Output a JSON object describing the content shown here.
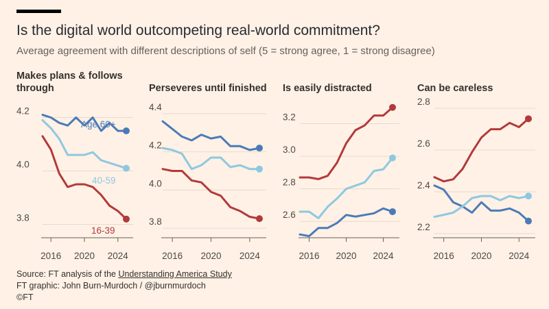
{
  "header": {
    "title": "Is the digital world outcompeting real-world commitment?",
    "subtitle": "Average agreement with different descriptions of self (5 = strong agree, 1 = strong disagree)"
  },
  "colors": {
    "age_60_plus": "#4a7bb7",
    "age_40_59": "#8ec8e0",
    "age_16_39": "#b23a3a",
    "background": "#fff1e5"
  },
  "chart_data": [
    {
      "type": "line",
      "title_lines": [
        "Makes plans & follows",
        "through"
      ],
      "x": [
        2015,
        2016,
        2017,
        2018,
        2019,
        2020,
        2021,
        2022,
        2023,
        2024,
        2025
      ],
      "xticks": [
        2016,
        2020,
        2024
      ],
      "ylim": [
        3.75,
        4.25
      ],
      "yticks": [
        3.8,
        4.0,
        4.2
      ],
      "ytick_labels": [
        "3.8",
        "4.0",
        "4.2"
      ],
      "series": [
        {
          "name": "Age 60+",
          "key": "age_60_plus",
          "values": [
            4.21,
            4.2,
            4.18,
            4.17,
            4.2,
            4.17,
            4.2,
            4.15,
            4.18,
            4.15,
            4.15
          ],
          "label": "Age 60+"
        },
        {
          "name": "40-59",
          "key": "age_40_59",
          "values": [
            4.19,
            4.16,
            4.12,
            4.06,
            4.06,
            4.06,
            4.07,
            4.04,
            4.03,
            4.02,
            4.01
          ],
          "label": "40-59"
        },
        {
          "name": "16-39",
          "key": "age_16_39",
          "values": [
            4.13,
            4.08,
            3.99,
            3.94,
            3.95,
            3.95,
            3.94,
            3.91,
            3.87,
            3.85,
            3.82
          ],
          "label": "16-39"
        }
      ]
    },
    {
      "type": "line",
      "title_lines": [
        "Perseveres until finished"
      ],
      "x": [
        2015,
        2016,
        2017,
        2018,
        2019,
        2020,
        2021,
        2022,
        2023,
        2024,
        2025
      ],
      "xticks": [
        2016,
        2020,
        2024
      ],
      "ylim": [
        3.75,
        4.45
      ],
      "yticks": [
        3.8,
        4.0,
        4.2,
        4.4
      ],
      "ytick_labels": [
        "3.8",
        "4.0",
        "4.2",
        "4.4"
      ],
      "series": [
        {
          "name": "Age 60+",
          "key": "age_60_plus",
          "values": [
            4.36,
            4.32,
            4.28,
            4.26,
            4.29,
            4.27,
            4.28,
            4.23,
            4.23,
            4.21,
            4.22
          ]
        },
        {
          "name": "40-59",
          "key": "age_40_59",
          "values": [
            4.22,
            4.21,
            4.19,
            4.11,
            4.13,
            4.17,
            4.17,
            4.12,
            4.13,
            4.11,
            4.11
          ]
        },
        {
          "name": "16-39",
          "key": "age_16_39",
          "values": [
            4.11,
            4.1,
            4.1,
            4.05,
            4.04,
            3.99,
            3.97,
            3.91,
            3.89,
            3.86,
            3.85
          ]
        }
      ]
    },
    {
      "type": "line",
      "title_lines": [
        "Is easily distracted"
      ],
      "x": [
        2015,
        2016,
        2017,
        2018,
        2019,
        2020,
        2021,
        2022,
        2023,
        2024,
        2025
      ],
      "xticks": [
        2016,
        2020,
        2024
      ],
      "ylim": [
        2.5,
        3.32
      ],
      "yticks": [
        2.6,
        2.8,
        3.0,
        3.2
      ],
      "ytick_labels": [
        "2.6",
        "2.8",
        "3.0",
        "3.2"
      ],
      "series": [
        {
          "name": "Age 60+",
          "key": "age_60_plus",
          "values": [
            2.52,
            2.51,
            2.56,
            2.56,
            2.59,
            2.64,
            2.63,
            2.64,
            2.65,
            2.68,
            2.66
          ]
        },
        {
          "name": "40-59",
          "key": "age_40_59",
          "values": [
            2.66,
            2.66,
            2.62,
            2.69,
            2.74,
            2.8,
            2.82,
            2.84,
            2.91,
            2.92,
            2.99
          ]
        },
        {
          "name": "16-39",
          "key": "age_16_39",
          "values": [
            2.87,
            2.87,
            2.86,
            2.88,
            2.96,
            3.08,
            3.16,
            3.19,
            3.25,
            3.25,
            3.3
          ]
        }
      ]
    },
    {
      "type": "line",
      "title_lines": [
        "Can be careless"
      ],
      "x": [
        2015,
        2016,
        2017,
        2018,
        2019,
        2020,
        2021,
        2022,
        2023,
        2024,
        2025
      ],
      "xticks": [
        2016,
        2020,
        2024
      ],
      "ylim": [
        2.18,
        2.82
      ],
      "yticks": [
        2.2,
        2.4,
        2.6,
        2.8
      ],
      "ytick_labels": [
        "2.2",
        "2.4",
        "2.6",
        "2.8"
      ],
      "series": [
        {
          "name": "Age 60+",
          "key": "age_60_plus",
          "values": [
            2.43,
            2.41,
            2.35,
            2.33,
            2.3,
            2.35,
            2.31,
            2.31,
            2.32,
            2.3,
            2.26
          ]
        },
        {
          "name": "40-59",
          "key": "age_40_59",
          "values": [
            2.28,
            2.29,
            2.3,
            2.33,
            2.37,
            2.38,
            2.38,
            2.36,
            2.38,
            2.37,
            2.38
          ]
        },
        {
          "name": "16-39",
          "key": "age_16_39",
          "values": [
            2.47,
            2.45,
            2.46,
            2.51,
            2.59,
            2.66,
            2.7,
            2.7,
            2.73,
            2.71,
            2.75
          ]
        }
      ]
    }
  ],
  "footer": {
    "source_prefix": "Source: FT analysis of the ",
    "source_link": "Understanding America Study",
    "credit": "FT graphic: John Burn-Murdoch / @jburnmurdoch",
    "copyright": "©FT"
  }
}
